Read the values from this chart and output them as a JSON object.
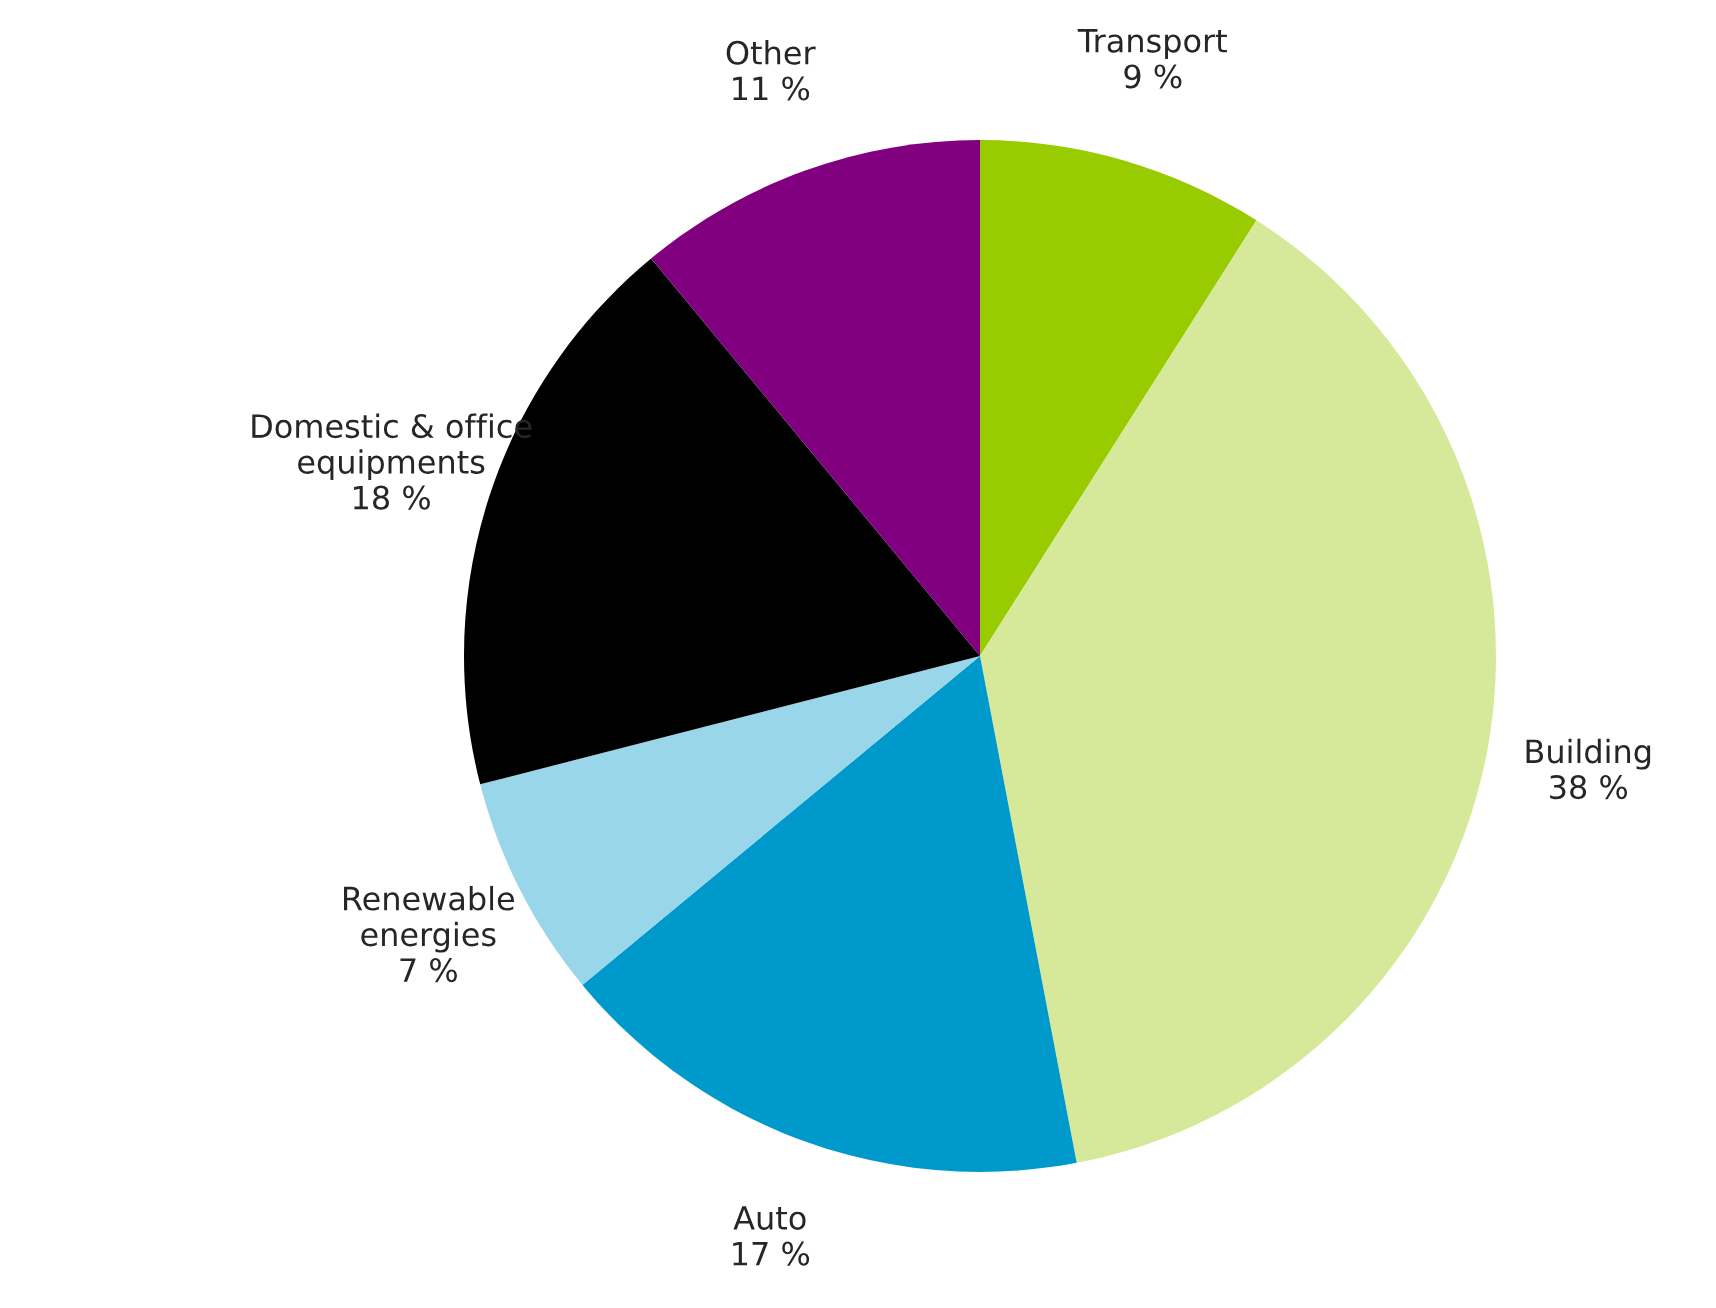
{
  "chart_data": {
    "type": "pie",
    "categories": [
      "Transport",
      "Building",
      "Auto",
      "Renewable energies",
      "Domestic & office equipments",
      "Other"
    ],
    "values": [
      9,
      38,
      17,
      7,
      18,
      11
    ],
    "value_labels": [
      "9 %",
      "38 %",
      "17 %",
      "7 %",
      "18 %",
      "11 %"
    ],
    "colors": [
      "#99cc00",
      "#d6e99a",
      "#0099cc",
      "#99d6ea",
      "#000000",
      "#800080"
    ],
    "legend": false
  }
}
